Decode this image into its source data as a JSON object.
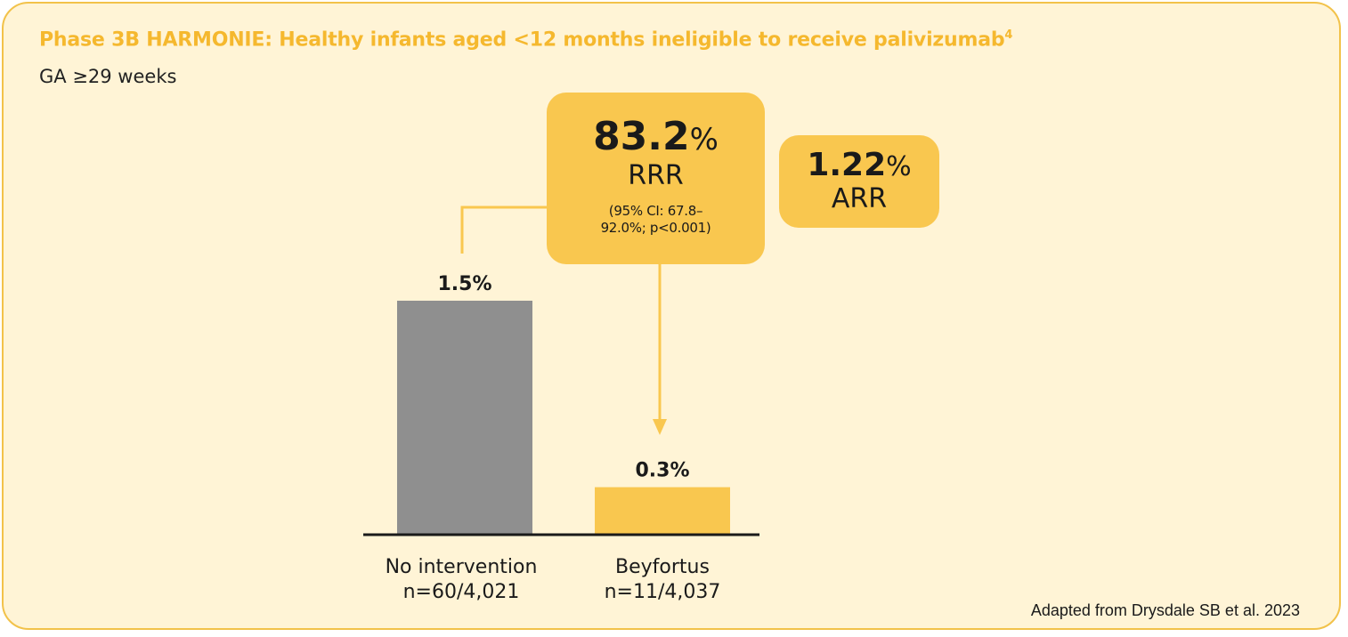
{
  "title": "Phase 3B HARMONIE: Healthy infants aged <12 months ineligible to receive palivizumab",
  "title_sup": "4",
  "subtitle": "GA ≥29 weeks",
  "rrr": {
    "value": "83.2",
    "unit": "%",
    "label": "RRR",
    "ci_line1": "(95% CI: 67.8–",
    "ci_line2": "92.0%; p<0.001)"
  },
  "arr": {
    "value": "1.22",
    "unit": "%",
    "label": "ARR"
  },
  "footnote": "Adapted from Drysdale SB et al. 2023",
  "colors": {
    "accent": "#f9c74f",
    "grey_bar": "#8f8f8f",
    "card_bg": "#fff4d6",
    "title": "#f5b82e"
  },
  "chart_data": {
    "type": "bar",
    "categories": [
      "No intervention",
      "Beyfortus"
    ],
    "category_sublabels": [
      "n=60/4,021",
      "n=11/4,037"
    ],
    "values": [
      1.5,
      0.3
    ],
    "data_labels": [
      "1.5%",
      "0.3%"
    ],
    "bar_colors": [
      "#8f8f8f",
      "#f9c74f"
    ],
    "title": "",
    "xlabel": "",
    "ylabel": "",
    "ylim": [
      0,
      1.5
    ],
    "grid": false,
    "legend": "none"
  }
}
